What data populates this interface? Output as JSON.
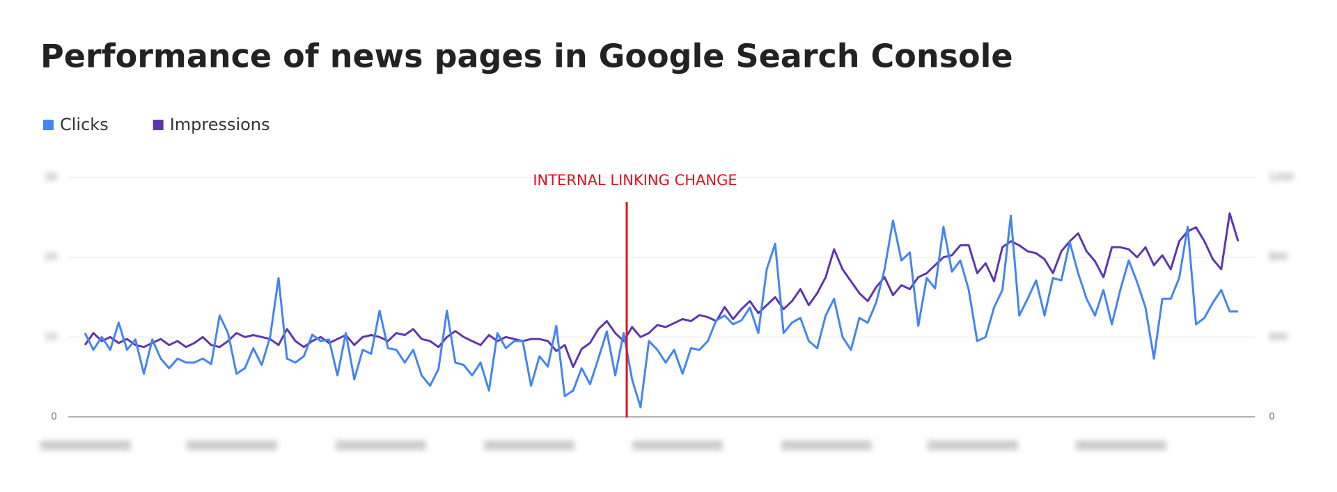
{
  "chart_data": {
    "type": "line",
    "title": "Performance of news pages in Google Search Console",
    "annotation": "INTERNAL LINKING CHANGE",
    "ylim": [
      0,
      30
    ],
    "yticks": [
      0,
      10,
      20,
      30
    ],
    "y2lim": [
      0,
      1200
    ],
    "y2ticks": [
      0,
      400,
      800,
      1200
    ],
    "grid": true,
    "legend": "top-left",
    "series": [
      {
        "name": "Clicks",
        "color": "#4285f4",
        "values": [
          10.5,
          8.4,
          10.0,
          8.4,
          11.8,
          8.4,
          9.7,
          5.4,
          9.7,
          7.3,
          6.1,
          7.3,
          6.8,
          6.8,
          7.3,
          6.6,
          12.7,
          10.5,
          5.4,
          6.1,
          8.6,
          6.5,
          10.0,
          17.4,
          7.3,
          6.8,
          7.6,
          10.3,
          9.5,
          9.7,
          5.2,
          10.5,
          4.7,
          8.4,
          7.9,
          13.3,
          8.6,
          8.4,
          6.8,
          8.4,
          5.2,
          3.9,
          6.0,
          13.3,
          6.8,
          6.5,
          5.2,
          6.8,
          3.3,
          10.5,
          8.6,
          9.5,
          9.5,
          3.9,
          7.6,
          6.3,
          11.4,
          2.6,
          3.3,
          6.1,
          4.1,
          7.3,
          10.7,
          5.2,
          10.5,
          4.7,
          1.2,
          9.5,
          8.4,
          6.8,
          8.4,
          5.4,
          8.6,
          8.4,
          9.5,
          12.1,
          12.7,
          11.6,
          12.1,
          13.7,
          10.5,
          18.5,
          21.7,
          10.5,
          11.8,
          12.4,
          9.5,
          8.6,
          12.7,
          14.8,
          10.0,
          8.4,
          12.4,
          11.8,
          14.3,
          18.5,
          24.6,
          19.6,
          20.6,
          11.4,
          17.4,
          16.1,
          23.8,
          18.2,
          19.6,
          15.9,
          9.5,
          10.0,
          13.7,
          15.9,
          25.2,
          12.7,
          14.8,
          17.1,
          12.7,
          17.4,
          17.1,
          21.9,
          18.0,
          14.8,
          12.7,
          15.9,
          11.6,
          15.9,
          19.6,
          16.9,
          13.7,
          7.3,
          14.8,
          14.8,
          17.4,
          23.8,
          11.6,
          12.4,
          14.3,
          15.9,
          13.2,
          13.2
        ]
      },
      {
        "name": "Impressions",
        "color": "#5e35b1",
        "axis": "y2",
        "values": [
          360,
          420,
          380,
          400,
          370,
          390,
          360,
          350,
          370,
          390,
          360,
          380,
          350,
          370,
          400,
          360,
          350,
          380,
          420,
          400,
          410,
          400,
          390,
          360,
          440,
          380,
          350,
          380,
          400,
          370,
          390,
          410,
          360,
          400,
          410,
          400,
          380,
          420,
          410,
          440,
          390,
          380,
          350,
          400,
          430,
          400,
          380,
          360,
          410,
          380,
          400,
          390,
          380,
          390,
          390,
          380,
          330,
          360,
          250,
          340,
          370,
          440,
          480,
          420,
          380,
          450,
          400,
          420,
          460,
          450,
          470,
          490,
          480,
          510,
          500,
          480,
          550,
          490,
          540,
          580,
          520,
          560,
          600,
          540,
          580,
          640,
          560,
          620,
          700,
          840,
          740,
          680,
          620,
          580,
          650,
          700,
          610,
          660,
          640,
          700,
          720,
          760,
          800,
          810,
          860,
          860,
          720,
          770,
          680,
          850,
          880,
          860,
          830,
          820,
          790,
          720,
          830,
          880,
          920,
          830,
          780,
          700,
          850,
          850,
          840,
          800,
          850,
          760,
          810,
          740,
          880,
          930,
          950,
          880,
          790,
          740,
          1020,
          880
        ]
      }
    ]
  }
}
